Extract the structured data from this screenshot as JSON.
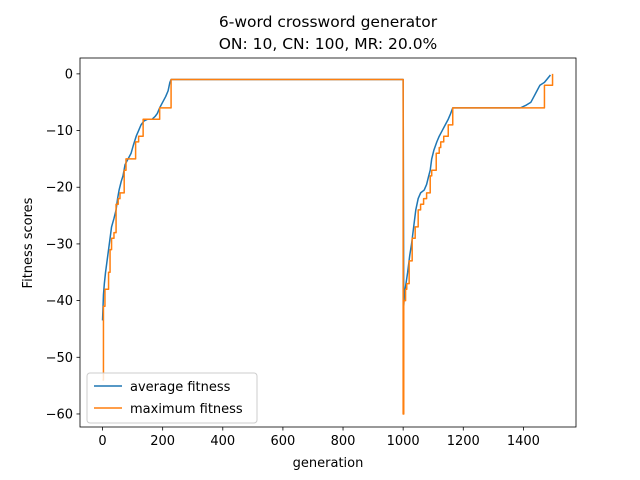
{
  "chart_data": {
    "type": "line",
    "title_lines": [
      "6-word crossword generator",
      "ON: 10, CN: 100, MR: 20.0%"
    ],
    "xlabel": "generation",
    "ylabel": "Fitness scores",
    "xlim": [
      -75,
      1575
    ],
    "ylim": [
      -62.3,
      2.8
    ],
    "xticks": [
      0,
      200,
      400,
      600,
      800,
      1000,
      1200,
      1400
    ],
    "yticks": [
      0,
      -10,
      -20,
      -30,
      -40,
      -50,
      -60
    ],
    "xtick_labels": [
      "0",
      "200",
      "400",
      "600",
      "800",
      "1000",
      "1200",
      "1400"
    ],
    "ytick_labels": [
      "0",
      "−10",
      "−20",
      "−30",
      "−40",
      "−50",
      "−60"
    ],
    "grid": false,
    "legend_position": "lower-left",
    "series": [
      {
        "name": "average fitness",
        "color": "#1f77b4",
        "step": false,
        "points": [
          [
            0,
            -43.5
          ],
          [
            3,
            -39
          ],
          [
            6,
            -37
          ],
          [
            10,
            -35
          ],
          [
            15,
            -33
          ],
          [
            20,
            -31
          ],
          [
            25,
            -29
          ],
          [
            30,
            -27
          ],
          [
            38,
            -25.5
          ],
          [
            45,
            -24
          ],
          [
            50,
            -22
          ],
          [
            55,
            -20.5
          ],
          [
            62,
            -19
          ],
          [
            68,
            -18
          ],
          [
            75,
            -16
          ],
          [
            85,
            -15
          ],
          [
            95,
            -14
          ],
          [
            103,
            -12.5
          ],
          [
            112,
            -11
          ],
          [
            120,
            -10
          ],
          [
            128,
            -9
          ],
          [
            138,
            -8.3
          ],
          [
            150,
            -8
          ],
          [
            165,
            -8
          ],
          [
            175,
            -7.5
          ],
          [
            182,
            -7
          ],
          [
            190,
            -6
          ],
          [
            200,
            -5
          ],
          [
            210,
            -4
          ],
          [
            218,
            -3
          ],
          [
            224,
            -1.5
          ],
          [
            228,
            -1
          ],
          [
            1000,
            -1
          ],
          [
            1002,
            -41
          ],
          [
            1004,
            -39
          ],
          [
            1008,
            -37.5
          ],
          [
            1015,
            -35
          ],
          [
            1022,
            -32
          ],
          [
            1028,
            -30
          ],
          [
            1035,
            -27
          ],
          [
            1042,
            -24
          ],
          [
            1050,
            -22
          ],
          [
            1058,
            -21
          ],
          [
            1070,
            -20.5
          ],
          [
            1078,
            -19.5
          ],
          [
            1085,
            -18
          ],
          [
            1090,
            -17
          ],
          [
            1095,
            -15
          ],
          [
            1102,
            -13.5
          ],
          [
            1112,
            -12
          ],
          [
            1120,
            -11
          ],
          [
            1130,
            -10
          ],
          [
            1140,
            -9
          ],
          [
            1150,
            -8
          ],
          [
            1158,
            -7
          ],
          [
            1165,
            -6
          ],
          [
            1200,
            -6
          ],
          [
            1300,
            -6
          ],
          [
            1390,
            -6
          ],
          [
            1410,
            -5.5
          ],
          [
            1425,
            -5
          ],
          [
            1435,
            -4
          ],
          [
            1445,
            -3
          ],
          [
            1455,
            -2
          ],
          [
            1470,
            -1.5
          ],
          [
            1490,
            -0.2
          ]
        ]
      },
      {
        "name": "maximum fitness",
        "color": "#ff7f0e",
        "step": true,
        "points": [
          [
            0,
            -54
          ],
          [
            3,
            -41
          ],
          [
            8,
            -38
          ],
          [
            20,
            -35
          ],
          [
            25,
            -31
          ],
          [
            30,
            -29
          ],
          [
            38,
            -28
          ],
          [
            45,
            -23
          ],
          [
            52,
            -22
          ],
          [
            58,
            -21
          ],
          [
            72,
            -17
          ],
          [
            78,
            -15
          ],
          [
            95,
            -15
          ],
          [
            110,
            -12
          ],
          [
            120,
            -11
          ],
          [
            135,
            -8
          ],
          [
            160,
            -8
          ],
          [
            165,
            -8
          ],
          [
            190,
            -6
          ],
          [
            222,
            -6
          ],
          [
            228,
            -1
          ],
          [
            998,
            -1
          ],
          [
            1000,
            -60
          ],
          [
            1002,
            -40
          ],
          [
            1008,
            -38
          ],
          [
            1012,
            -37
          ],
          [
            1020,
            -33
          ],
          [
            1030,
            -29
          ],
          [
            1040,
            -27
          ],
          [
            1050,
            -24
          ],
          [
            1058,
            -23
          ],
          [
            1068,
            -22
          ],
          [
            1078,
            -21
          ],
          [
            1090,
            -18
          ],
          [
            1095,
            -17
          ],
          [
            1110,
            -14
          ],
          [
            1120,
            -13
          ],
          [
            1125,
            -12
          ],
          [
            1135,
            -11
          ],
          [
            1150,
            -9
          ],
          [
            1165,
            -6
          ],
          [
            1400,
            -6
          ],
          [
            1460,
            -6
          ],
          [
            1470,
            -2
          ],
          [
            1492,
            -2
          ],
          [
            1497,
            0
          ]
        ]
      }
    ]
  }
}
